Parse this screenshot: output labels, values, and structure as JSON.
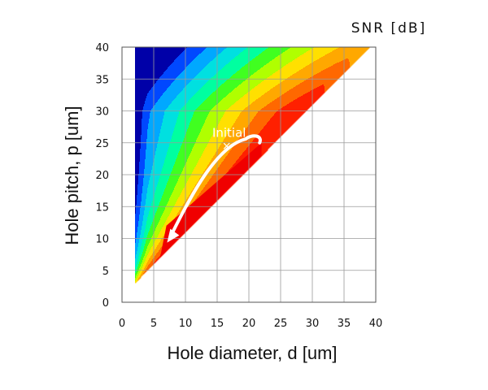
{
  "chart_data": {
    "type": "heatmap",
    "title": "",
    "colorbar_label": "SNR [dB]",
    "xlabel": "Hole diameter, d [um]",
    "ylabel": "Hole pitch, p [um]",
    "xlim": [
      0,
      40
    ],
    "ylim": [
      0,
      40
    ],
    "x_ticks": [
      "0",
      "5",
      "10",
      "15",
      "20",
      "25",
      "30",
      "35",
      "40"
    ],
    "y_ticks": [
      "0",
      "5",
      "10",
      "15",
      "20",
      "25",
      "30",
      "35",
      "40"
    ],
    "grid": true,
    "colormap": "jet",
    "valid_region": "triangle bounded by d = 2, p = 40 and p = d + 1",
    "contour_levels": 11,
    "optimum_band": {
      "d_range": [
        6,
        22
      ],
      "p_offset_above_d": [
        1,
        3
      ]
    },
    "annotations": [
      {
        "text": "Initial",
        "marker": "x",
        "x": 16.5,
        "y": 24.5
      }
    ],
    "optimization_path": [
      {
        "x": 21.7,
        "y": 25
      },
      {
        "x": 17.5,
        "y": 22
      },
      {
        "x": 12.5,
        "y": 17.5
      },
      {
        "x": 8,
        "y": 11
      }
    ],
    "colors": {
      "path": "#ffffff",
      "marker": "#ffffff",
      "grid": "#9a9a9a"
    }
  }
}
